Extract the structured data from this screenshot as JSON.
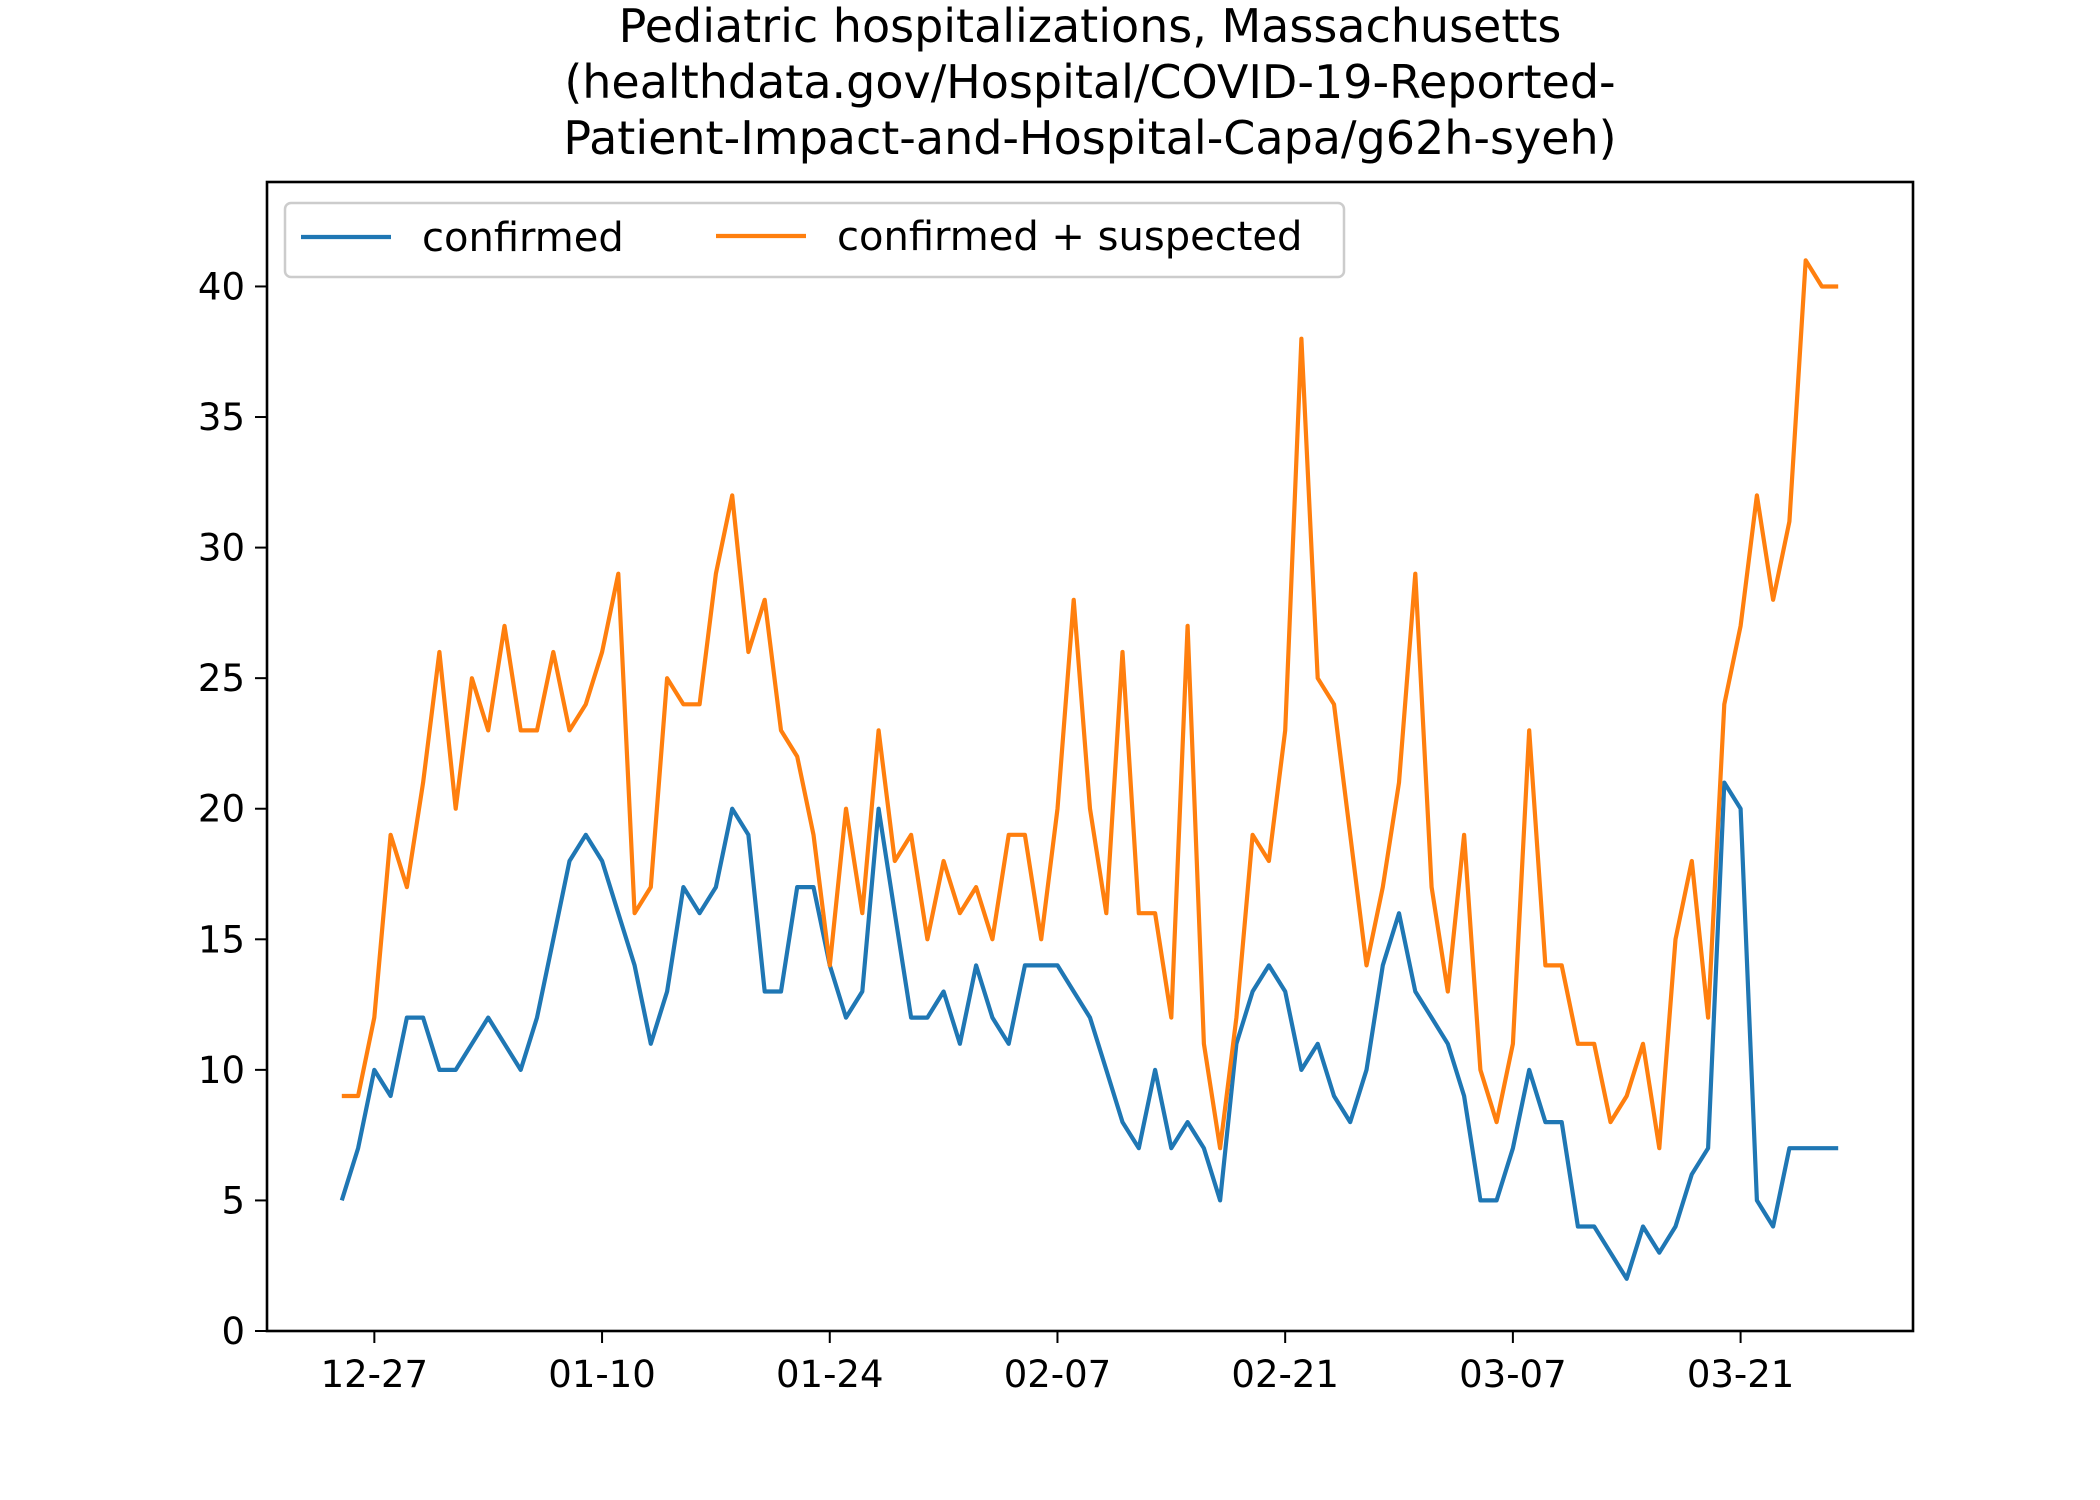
{
  "chart_data": {
    "type": "line",
    "title": "Pediatric hospitalizations, Massachusetts\n(healthdata.gov/Hospital/COVID-19-Reported-\nPatient-Impact-and-Hospital-Capa/g62h-syeh)",
    "title_lines": [
      "Pediatric hospitalizations, Massachusetts",
      "(healthdata.gov/Hospital/COVID-19-Reported-",
      "Patient-Impact-and-Hospital-Capa/g62h-syeh)"
    ],
    "xlabel": "",
    "ylabel": "",
    "x": [
      "12-25",
      "12-26",
      "12-27",
      "12-28",
      "12-29",
      "12-30",
      "12-31",
      "01-01",
      "01-02",
      "01-03",
      "01-04",
      "01-05",
      "01-06",
      "01-07",
      "01-08",
      "01-09",
      "01-10",
      "01-11",
      "01-12",
      "01-13",
      "01-14",
      "01-15",
      "01-16",
      "01-17",
      "01-18",
      "01-19",
      "01-20",
      "01-21",
      "01-22",
      "01-23",
      "01-24",
      "01-25",
      "01-26",
      "01-27",
      "01-28",
      "01-29",
      "01-30",
      "01-31",
      "02-01",
      "02-02",
      "02-03",
      "02-04",
      "02-05",
      "02-06",
      "02-07",
      "02-08",
      "02-09",
      "02-10",
      "02-11",
      "02-12",
      "02-13",
      "02-14",
      "02-15",
      "02-16",
      "02-17",
      "02-18",
      "02-19",
      "02-20",
      "02-21",
      "02-22",
      "02-23",
      "02-24",
      "02-25",
      "02-26",
      "02-27",
      "02-28",
      "03-01",
      "03-02",
      "03-03",
      "03-04",
      "03-05",
      "03-06",
      "03-07",
      "03-08",
      "03-09",
      "03-10",
      "03-11",
      "03-12",
      "03-13",
      "03-14",
      "03-15",
      "03-16",
      "03-17",
      "03-18",
      "03-19",
      "03-20",
      "03-21",
      "03-22",
      "03-23",
      "03-24",
      "03-25",
      "03-26",
      "03-27"
    ],
    "series": [
      {
        "name": "confirmed",
        "color": "#1f77b4",
        "values": [
          5,
          7,
          10,
          9,
          12,
          12,
          10,
          10,
          11,
          12,
          11,
          10,
          12,
          15,
          18,
          19,
          18,
          16,
          14,
          11,
          13,
          17,
          16,
          17,
          20,
          19,
          13,
          13,
          17,
          17,
          14,
          12,
          13,
          20,
          16,
          12,
          12,
          13,
          11,
          14,
          12,
          11,
          14,
          14,
          14,
          13,
          12,
          10,
          8,
          7,
          10,
          7,
          8,
          7,
          5,
          11,
          13,
          14,
          13,
          10,
          11,
          9,
          8,
          10,
          14,
          16,
          13,
          12,
          11,
          9,
          5,
          5,
          7,
          10,
          8,
          8,
          4,
          4,
          3,
          2,
          4,
          3,
          4,
          6,
          7,
          21,
          20,
          5,
          4,
          7,
          7,
          7,
          7
        ]
      },
      {
        "name": "confirmed + suspected",
        "color": "#ff7f0e",
        "values": [
          9,
          9,
          12,
          19,
          17,
          21,
          26,
          20,
          25,
          23,
          27,
          23,
          23,
          26,
          23,
          24,
          26,
          29,
          16,
          17,
          25,
          24,
          24,
          29,
          32,
          26,
          28,
          23,
          22,
          19,
          14,
          20,
          16,
          23,
          18,
          19,
          15,
          18,
          16,
          17,
          15,
          19,
          19,
          15,
          20,
          28,
          20,
          16,
          26,
          16,
          16,
          12,
          27,
          11,
          7,
          12,
          19,
          18,
          23,
          38,
          25,
          24,
          19,
          14,
          17,
          21,
          29,
          17,
          13,
          19,
          10,
          8,
          11,
          23,
          14,
          14,
          11,
          11,
          8,
          9,
          11,
          7,
          15,
          18,
          12,
          24,
          27,
          32,
          28,
          31,
          41,
          40,
          40
        ]
      }
    ],
    "x_ticks": [
      "12-27",
      "01-10",
      "01-24",
      "02-07",
      "02-21",
      "03-07",
      "03-21"
    ],
    "y_ticks": [
      "0",
      "5",
      "10",
      "15",
      "20",
      "25",
      "30",
      "35",
      "40"
    ],
    "ylim": [
      0,
      44
    ],
    "legend": {
      "placement": "upper-left",
      "columns": 2,
      "entries": [
        "confirmed",
        "confirmed + suspected"
      ]
    },
    "grid": false
  }
}
